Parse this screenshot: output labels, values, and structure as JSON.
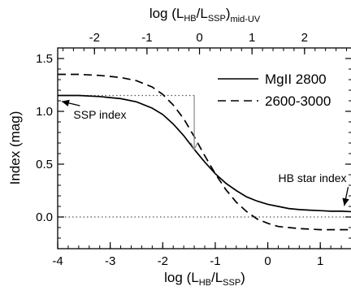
{
  "chart_data": {
    "type": "line",
    "bottom_axis": {
      "label_main": "log (L",
      "label_sub1": "HB",
      "label_mid": "/L",
      "label_sub2": "SSP",
      "label_end": ")",
      "range": [
        -4.0,
        1.6
      ],
      "ticks": [
        -4,
        -3,
        -2,
        -1,
        0,
        1
      ],
      "tick_labels": [
        "-4",
        "-3",
        "-2",
        "-1",
        "0",
        "1"
      ]
    },
    "top_axis": {
      "label_main": "log (L",
      "label_sub1": "HB",
      "label_mid": "/L",
      "label_sub2": "SSP",
      "label_sub3": "mid-UV",
      "range": [
        -2.7,
        2.9
      ],
      "ticks": [
        -2,
        -1,
        0,
        1,
        2
      ],
      "tick_labels": [
        "-2",
        "-1",
        "0",
        "1",
        "2"
      ]
    },
    "left_axis": {
      "label": "Index (mag)",
      "range": [
        -0.3,
        1.6
      ],
      "ticks": [
        0.0,
        0.5,
        1.0,
        1.5
      ],
      "tick_labels": [
        "0.0",
        "0.5",
        "1.0",
        "1.5"
      ]
    },
    "series": [
      {
        "name": "MgII 2800",
        "style": "solid",
        "color": "#000000",
        "x": [
          -4.0,
          -3.6,
          -3.2,
          -2.8,
          -2.5,
          -2.2,
          -2.0,
          -1.8,
          -1.6,
          -1.4,
          -1.2,
          -1.0,
          -0.8,
          -0.6,
          -0.4,
          -0.2,
          0.0,
          0.2,
          0.4,
          0.6,
          0.8,
          1.0,
          1.2,
          1.4,
          1.6
        ],
        "y": [
          1.15,
          1.15,
          1.14,
          1.12,
          1.09,
          1.03,
          0.97,
          0.88,
          0.77,
          0.64,
          0.52,
          0.41,
          0.32,
          0.25,
          0.19,
          0.15,
          0.12,
          0.1,
          0.08,
          0.07,
          0.065,
          0.06,
          0.055,
          0.055,
          0.05
        ]
      },
      {
        "name": "2600-3000",
        "style": "dashed",
        "color": "#000000",
        "x": [
          -4.0,
          -3.6,
          -3.2,
          -2.8,
          -2.5,
          -2.2,
          -2.0,
          -1.8,
          -1.6,
          -1.4,
          -1.2,
          -1.0,
          -0.8,
          -0.6,
          -0.4,
          -0.2,
          0.0,
          0.2,
          0.4,
          0.6,
          0.8,
          1.0,
          1.2,
          1.4,
          1.6
        ],
        "y": [
          1.35,
          1.35,
          1.34,
          1.32,
          1.29,
          1.23,
          1.16,
          1.06,
          0.93,
          0.76,
          0.58,
          0.41,
          0.26,
          0.14,
          0.05,
          -0.02,
          -0.06,
          -0.09,
          -0.1,
          -0.11,
          -0.115,
          -0.12,
          -0.12,
          -0.12,
          -0.12
        ]
      }
    ],
    "reference_lines": [
      {
        "kind": "horizontal",
        "y": 0.0,
        "x_from": -4.0,
        "x_to": 1.6,
        "style": "dotted"
      },
      {
        "kind": "horizontal",
        "y": 1.15,
        "x_from": -4.0,
        "x_to": -1.4,
        "style": "dotted"
      }
    ],
    "arrows": [
      {
        "label": "",
        "from": [
          -1.4,
          1.15
        ],
        "to": [
          -1.4,
          0.64
        ]
      }
    ],
    "annotations": [
      {
        "text": "SSP index",
        "text_at": [
          -3.7,
          0.93
        ],
        "points_to": [
          -3.97,
          1.11
        ]
      },
      {
        "text": "HB star index",
        "text_at": [
          0.2,
          0.33
        ],
        "points_to": [
          1.58,
          0.06
        ]
      }
    ],
    "legend": {
      "position": "top-right"
    }
  }
}
